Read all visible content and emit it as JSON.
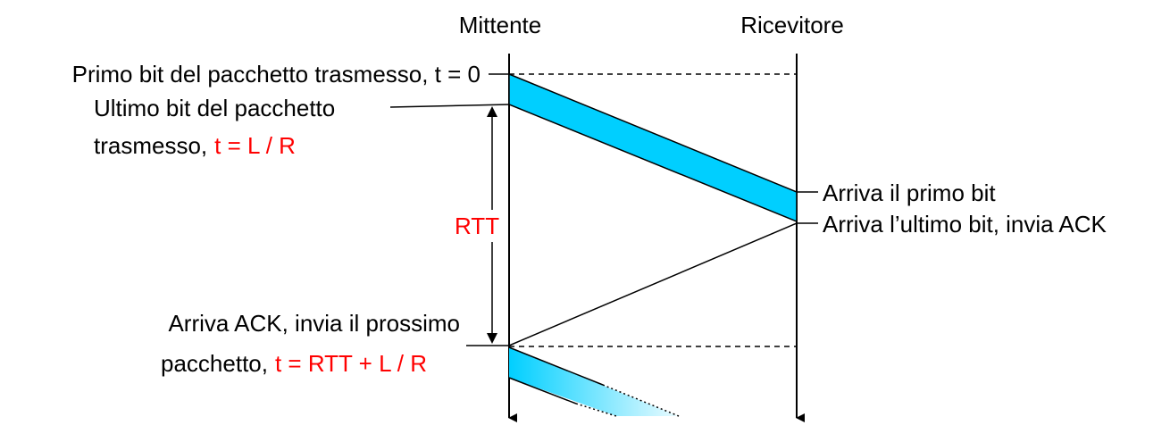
{
  "headers": {
    "sender": "Mittente",
    "receiver": "Ricevitore"
  },
  "labels": {
    "first_bit_sent": "Primo bit del pacchetto trasmesso, t = 0",
    "last_bit_sent_line1": "Ultimo bit del pacchetto",
    "last_bit_sent_line2_text": "trasmesso,",
    "last_bit_sent_formula": "t = L / R",
    "rtt": "RTT",
    "first_bit_arrives": "Arriva il primo bit",
    "last_bit_arrives": "Arriva l’ultimo bit, invia ACK",
    "ack_arrives_line1": "Arriva ACK, invia il prossimo",
    "ack_arrives_line2_text": "pacchetto,",
    "ack_arrives_formula": "t = RTT + L / R"
  },
  "colors": {
    "packet_fill": "#00cfff",
    "formula_text": "#ff0000",
    "line": "#000000"
  }
}
